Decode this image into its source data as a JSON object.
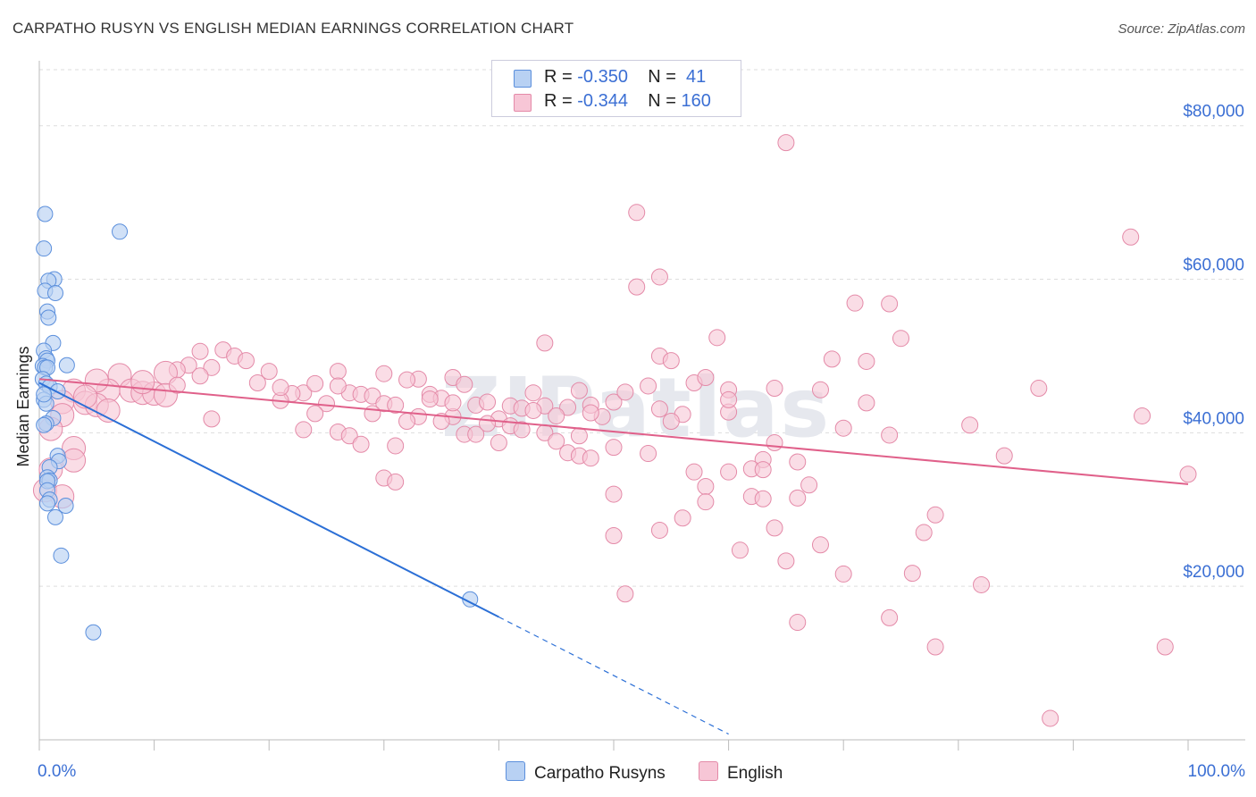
{
  "title": "CARPATHO RUSYN VS ENGLISH MEDIAN EARNINGS CORRELATION CHART",
  "source": "Source: ZipAtlas.com",
  "watermark": "ZIPatlas",
  "colors": {
    "blue_fill": "#b8d1f3",
    "blue_stroke": "#5b8fdc",
    "blue_line": "#2b6fd6",
    "pink_fill": "#f7c6d6",
    "pink_stroke": "#e48aa8",
    "pink_line": "#e0608a",
    "axis_label": "#3b6fd4",
    "grid": "#dddddd"
  },
  "legend": {
    "rows": [
      {
        "r_label": "R = ",
        "r_value": "-0.350",
        "n_label": "N = ",
        "n_value": " 41"
      },
      {
        "r_label": "R = ",
        "r_value": "-0.344",
        "n_label": "N = ",
        "n_value": "160"
      }
    ]
  },
  "bottom_legend": [
    "Carpatho Rusyns",
    "English"
  ],
  "chart_data": {
    "type": "scatter",
    "title": "CARPATHO RUSYN VS ENGLISH MEDIAN EARNINGS CORRELATION CHART",
    "xlabel": "",
    "ylabel": "Median Earnings",
    "xlim": [
      0,
      100
    ],
    "ylim": [
      0,
      88000
    ],
    "x_tick_labels": [
      "0.0%",
      "100.0%"
    ],
    "y_ticks": [
      20000,
      40000,
      60000,
      80000
    ],
    "y_tick_labels": [
      "$20,000",
      "$40,000",
      "$60,000",
      "$80,000"
    ],
    "grid": "horizontal dashed",
    "legend_position": "top-center",
    "series": [
      {
        "name": "Carpatho Rusyns",
        "R": -0.35,
        "N": 41,
        "trend": {
          "x0": 0,
          "y0": 46500,
          "x1": 40,
          "y1": 16000,
          "dash_to_x": 60
        },
        "points": [
          [
            0.5,
            68500
          ],
          [
            0.4,
            64000
          ],
          [
            7.0,
            66200
          ],
          [
            1.3,
            60000
          ],
          [
            0.8,
            59800
          ],
          [
            0.5,
            58500
          ],
          [
            1.4,
            58200
          ],
          [
            0.7,
            55800
          ],
          [
            0.8,
            55000
          ],
          [
            1.2,
            51700
          ],
          [
            0.4,
            50700
          ],
          [
            0.6,
            49700
          ],
          [
            0.7,
            49400
          ],
          [
            0.3,
            48700
          ],
          [
            0.5,
            48500
          ],
          [
            0.7,
            48500
          ],
          [
            2.4,
            48800
          ],
          [
            0.3,
            47000
          ],
          [
            0.6,
            46400
          ],
          [
            0.9,
            46000
          ],
          [
            1.6,
            45400
          ],
          [
            0.4,
            44300
          ],
          [
            0.6,
            43800
          ],
          [
            1.2,
            41900
          ],
          [
            0.6,
            41200
          ],
          [
            0.4,
            41000
          ],
          [
            1.6,
            37000
          ],
          [
            1.7,
            36300
          ],
          [
            0.9,
            35500
          ],
          [
            0.7,
            34200
          ],
          [
            0.9,
            33800
          ],
          [
            0.7,
            33700
          ],
          [
            0.7,
            32500
          ],
          [
            0.9,
            31300
          ],
          [
            0.7,
            30800
          ],
          [
            2.3,
            30500
          ],
          [
            1.4,
            29000
          ],
          [
            1.9,
            24000
          ],
          [
            37.5,
            18300
          ],
          [
            4.7,
            14000
          ],
          [
            0.4,
            45000
          ]
        ]
      },
      {
        "name": "English",
        "R": -0.344,
        "N": 160,
        "trend": {
          "x0": 0,
          "y0": 47000,
          "x1": 100,
          "y1": 33300
        },
        "points": [
          [
            65,
            77800
          ],
          [
            52,
            68700
          ],
          [
            95,
            65500
          ],
          [
            52,
            59000
          ],
          [
            54,
            60300
          ],
          [
            71,
            56900
          ],
          [
            74,
            56800
          ],
          [
            75,
            52300
          ],
          [
            59,
            52400
          ],
          [
            44,
            51700
          ],
          [
            54,
            50000
          ],
          [
            16,
            50800
          ],
          [
            14,
            50600
          ],
          [
            17,
            50000
          ],
          [
            18,
            49400
          ],
          [
            69,
            49600
          ],
          [
            72,
            49300
          ],
          [
            55,
            49400
          ],
          [
            13,
            48800
          ],
          [
            15,
            48500
          ],
          [
            12,
            48200
          ],
          [
            11,
            47800
          ],
          [
            20,
            48000
          ],
          [
            7,
            47500
          ],
          [
            26,
            48000
          ],
          [
            30,
            47700
          ],
          [
            33,
            47000
          ],
          [
            36,
            47200
          ],
          [
            53,
            46100
          ],
          [
            57,
            46500
          ],
          [
            64,
            45800
          ],
          [
            87,
            45800
          ],
          [
            60,
            45600
          ],
          [
            3,
            45500
          ],
          [
            6,
            45500
          ],
          [
            8,
            45500
          ],
          [
            9,
            45200
          ],
          [
            10,
            45100
          ],
          [
            23,
            45200
          ],
          [
            22,
            45100
          ],
          [
            27,
            45200
          ],
          [
            28,
            45000
          ],
          [
            29,
            44800
          ],
          [
            34,
            45000
          ],
          [
            35,
            44500
          ],
          [
            43,
            45200
          ],
          [
            47,
            45500
          ],
          [
            21,
            44200
          ],
          [
            2,
            44000
          ],
          [
            4,
            43900
          ],
          [
            5,
            43600
          ],
          [
            25,
            43800
          ],
          [
            30,
            43800
          ],
          [
            31,
            43600
          ],
          [
            38,
            43600
          ],
          [
            39,
            44000
          ],
          [
            41,
            43500
          ],
          [
            42,
            43200
          ],
          [
            44,
            43500
          ],
          [
            46,
            43300
          ],
          [
            48,
            43600
          ],
          [
            50,
            44000
          ],
          [
            56,
            42400
          ],
          [
            60,
            42700
          ],
          [
            72,
            43900
          ],
          [
            96,
            42200
          ],
          [
            15,
            41800
          ],
          [
            24,
            42500
          ],
          [
            29,
            42500
          ],
          [
            33,
            42100
          ],
          [
            36,
            42100
          ],
          [
            45,
            42200
          ],
          [
            49,
            42100
          ],
          [
            23,
            40400
          ],
          [
            26,
            40100
          ],
          [
            32,
            41500
          ],
          [
            35,
            41500
          ],
          [
            40,
            41800
          ],
          [
            41,
            40900
          ],
          [
            42,
            40400
          ],
          [
            44,
            40000
          ],
          [
            81,
            41000
          ],
          [
            27,
            39600
          ],
          [
            37,
            39800
          ],
          [
            38,
            39800
          ],
          [
            45,
            38900
          ],
          [
            74,
            39700
          ],
          [
            28,
            38500
          ],
          [
            31,
            38300
          ],
          [
            50,
            38100
          ],
          [
            53,
            37300
          ],
          [
            46,
            37400
          ],
          [
            47,
            37000
          ],
          [
            48,
            36700
          ],
          [
            63,
            36500
          ],
          [
            66,
            36200
          ],
          [
            64,
            38700
          ],
          [
            84,
            37000
          ],
          [
            3,
            38000
          ],
          [
            0.5,
            32500
          ],
          [
            57,
            34900
          ],
          [
            60,
            34900
          ],
          [
            62,
            35300
          ],
          [
            63,
            35200
          ],
          [
            100,
            34600
          ],
          [
            30,
            34100
          ],
          [
            31,
            33600
          ],
          [
            67,
            33200
          ],
          [
            58,
            33000
          ],
          [
            50,
            32000
          ],
          [
            62,
            31700
          ],
          [
            63,
            31400
          ],
          [
            66,
            31500
          ],
          [
            58,
            31000
          ],
          [
            78,
            29300
          ],
          [
            77,
            27000
          ],
          [
            56,
            28900
          ],
          [
            54,
            27300
          ],
          [
            64,
            27600
          ],
          [
            50,
            26600
          ],
          [
            68,
            25400
          ],
          [
            61,
            24700
          ],
          [
            65,
            23300
          ],
          [
            70,
            21600
          ],
          [
            76,
            21700
          ],
          [
            82,
            20200
          ],
          [
            51,
            19000
          ],
          [
            74,
            15900
          ],
          [
            66,
            15300
          ],
          [
            78,
            12100
          ],
          [
            98,
            12100
          ],
          [
            88,
            2800
          ],
          [
            2,
            42300
          ],
          [
            1,
            40500
          ],
          [
            3,
            36400
          ],
          [
            1,
            35200
          ],
          [
            2,
            31700
          ],
          [
            5,
            46800
          ],
          [
            4,
            44700
          ],
          [
            6,
            42900
          ],
          [
            9,
            46600
          ],
          [
            11,
            44900
          ],
          [
            12,
            46200
          ],
          [
            14,
            47400
          ],
          [
            19,
            46500
          ],
          [
            21,
            45900
          ],
          [
            37,
            46300
          ],
          [
            39,
            41200
          ],
          [
            43,
            42900
          ],
          [
            48,
            42600
          ],
          [
            51,
            45300
          ],
          [
            54,
            43100
          ],
          [
            58,
            47200
          ],
          [
            60,
            44300
          ],
          [
            68,
            45600
          ],
          [
            70,
            40600
          ],
          [
            24,
            46400
          ],
          [
            32,
            46900
          ],
          [
            34,
            44400
          ],
          [
            40,
            38700
          ],
          [
            55,
            41500
          ],
          [
            47,
            39600
          ],
          [
            36,
            43900
          ],
          [
            26,
            46100
          ]
        ]
      }
    ]
  }
}
